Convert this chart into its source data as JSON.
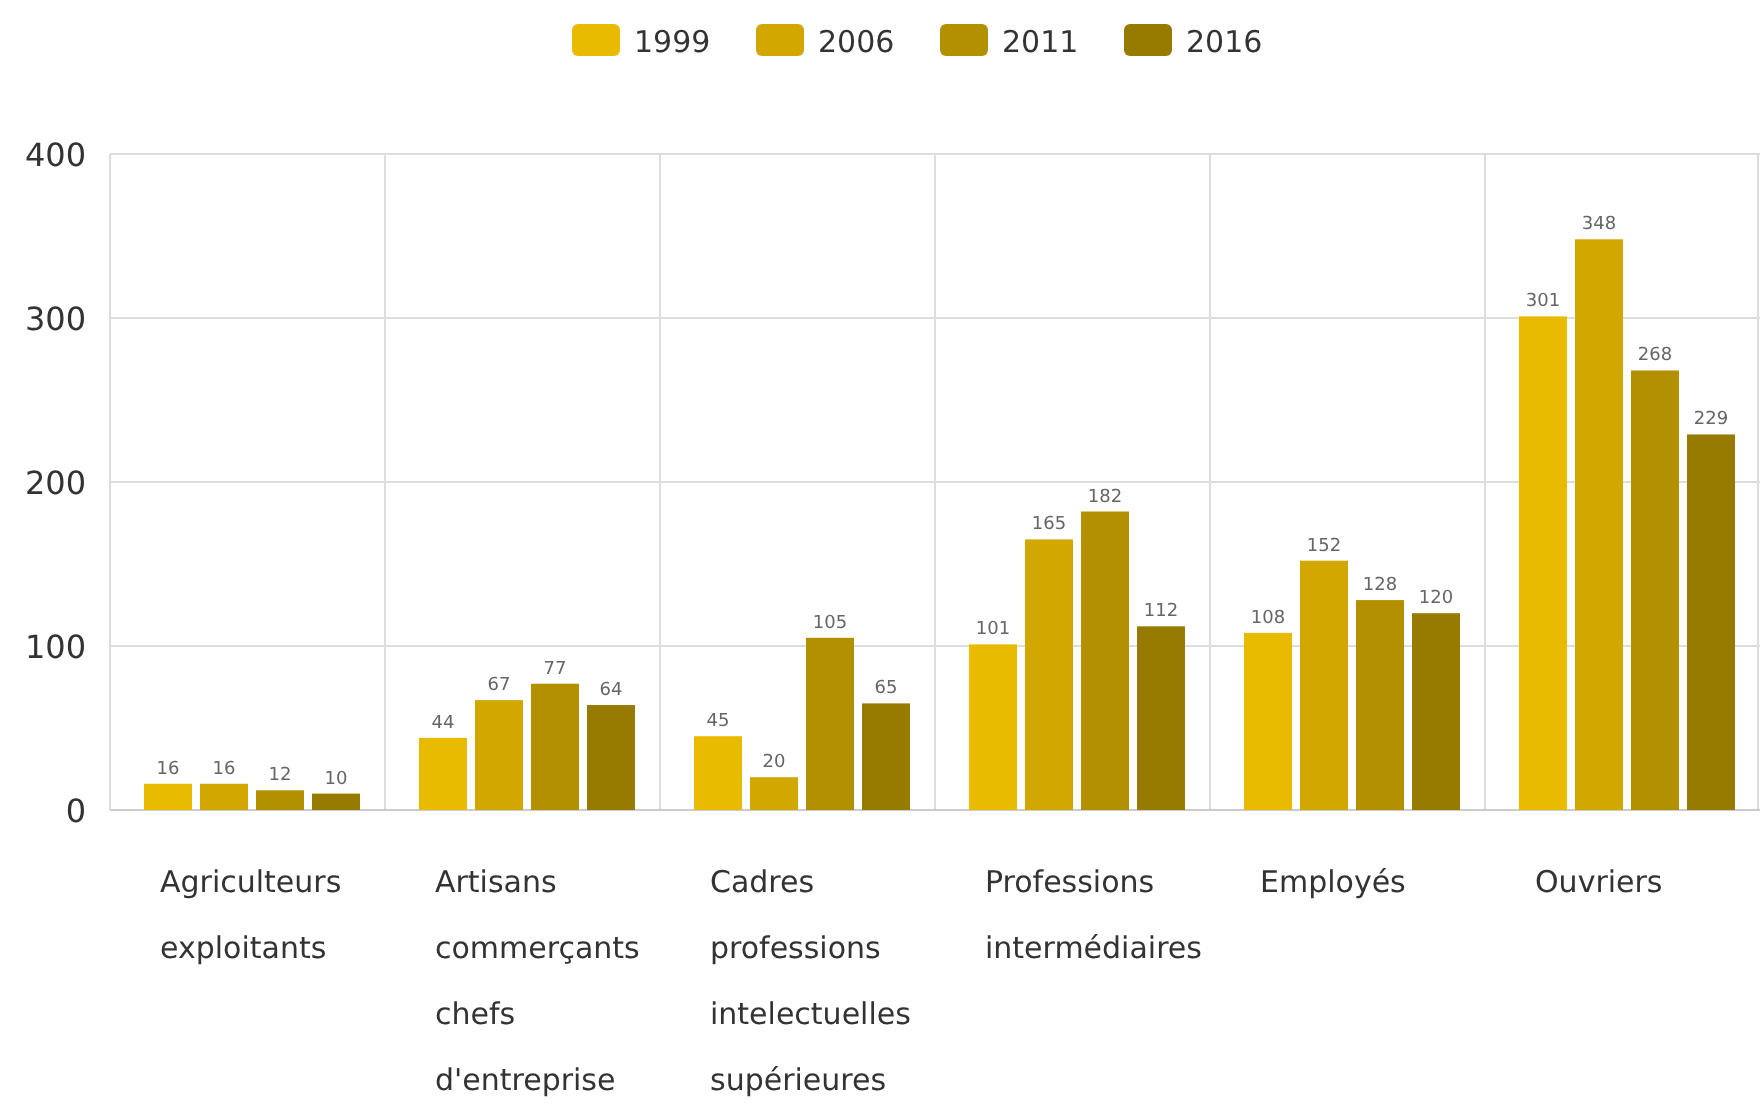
{
  "chart_data": {
    "type": "bar",
    "categories": [
      "Agriculteurs exploitants",
      "Artisans commerçants chefs d'entreprise",
      "Cadres professions intelectuelles supérieures",
      "Professions intermédiaires",
      "Employés",
      "Ouvriers"
    ],
    "series": [
      {
        "name": "1999",
        "color": "#e8bb00",
        "values": [
          16,
          44,
          45,
          101,
          108,
          301
        ]
      },
      {
        "name": "2006",
        "color": "#d1a700",
        "values": [
          16,
          67,
          20,
          165,
          152,
          348
        ]
      },
      {
        "name": "2011",
        "color": "#b39000",
        "values": [
          12,
          77,
          105,
          182,
          128,
          268
        ]
      },
      {
        "name": "2016",
        "color": "#977a00",
        "values": [
          10,
          64,
          65,
          112,
          120,
          229
        ]
      }
    ],
    "ylim": [
      0,
      400
    ],
    "yticks": [
      0,
      100,
      200,
      300,
      400
    ],
    "grid": true,
    "legend": "top",
    "data_labels": true
  }
}
